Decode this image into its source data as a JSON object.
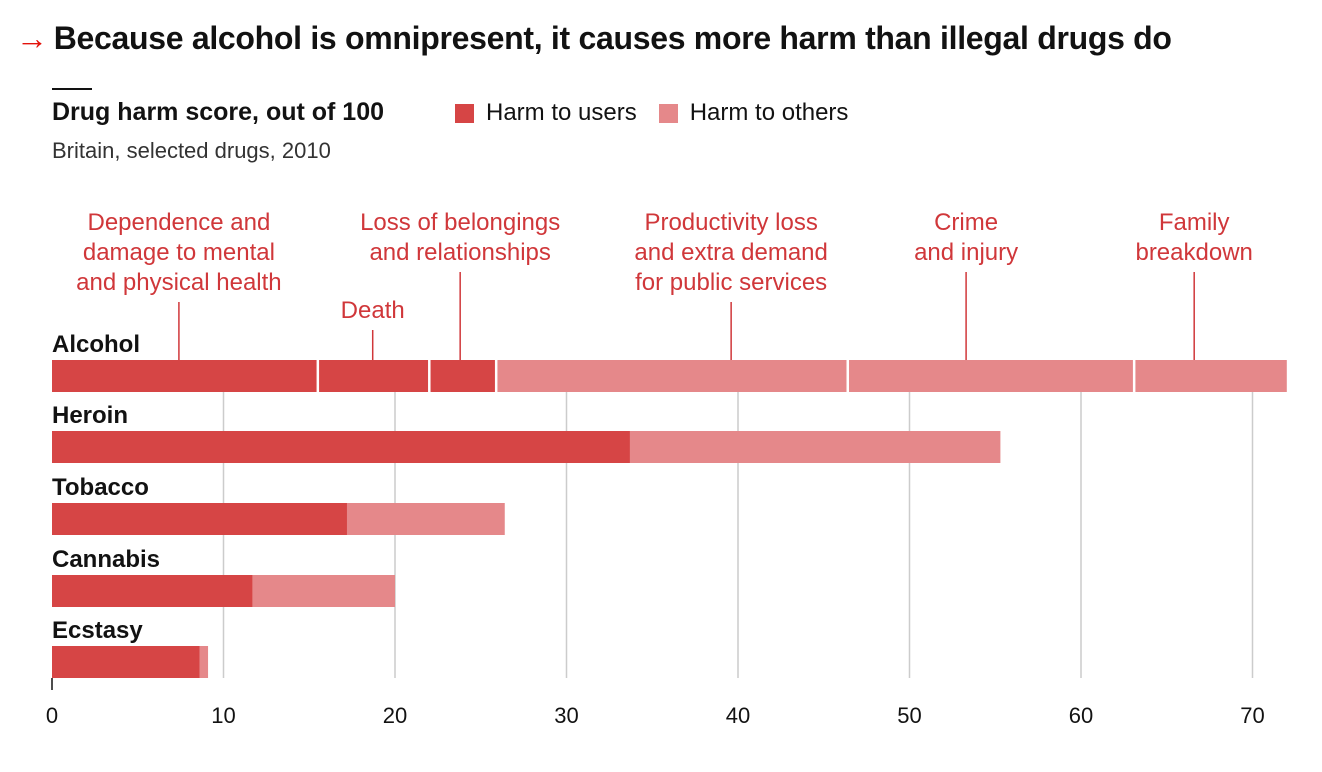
{
  "headline": {
    "arrow": "→",
    "title": "Because alcohol is omnipresent, it causes more harm than illegal drugs do"
  },
  "colors": {
    "users": "#d64545",
    "others": "#e5888a",
    "annotation": "#d0373a",
    "grid": "#cccccc"
  },
  "chart_data": {
    "type": "bar",
    "orientation": "horizontal",
    "stacked": true,
    "title": "Drug harm score, out of 100",
    "subtitle": "Britain, selected drugs, 2010",
    "xlim": [
      0,
      72
    ],
    "xticks": [
      0,
      10,
      20,
      30,
      40,
      50,
      60,
      70
    ],
    "grid": "vertical",
    "legend_position": "top",
    "categories": [
      "Alcohol",
      "Heroin",
      "Tobacco",
      "Cannabis",
      "Ecstasy"
    ],
    "series": [
      {
        "name": "Harm to users",
        "values": [
          25.9,
          33.7,
          17.2,
          11.7,
          8.6
        ]
      },
      {
        "name": "Harm to others",
        "values": [
          46.1,
          21.6,
          9.2,
          8.3,
          0.5
        ]
      }
    ],
    "alcohol_breakdown": [
      {
        "series": "Harm to users",
        "value": 15.5
      },
      {
        "series": "Harm to users",
        "value": 6.5
      },
      {
        "series": "Harm to users",
        "value": 3.9
      },
      {
        "series": "Harm to others",
        "value": 20.5
      },
      {
        "series": "Harm to others",
        "value": 16.7
      },
      {
        "series": "Harm to others",
        "value": 8.9
      }
    ],
    "annotations": [
      {
        "lines": [
          "Dependence and",
          "damage to mental",
          "and physical health"
        ],
        "x": 7.4
      },
      {
        "lines": [
          "Death"
        ],
        "x": 18.7
      },
      {
        "lines": [
          "Loss of belongings",
          "and relationships"
        ],
        "x": 23.8
      },
      {
        "lines": [
          "Productivity loss",
          "and extra demand",
          "for public services"
        ],
        "x": 39.6
      },
      {
        "lines": [
          "Crime",
          "and injury"
        ],
        "x": 53.3
      },
      {
        "lines": [
          "Family",
          "breakdown"
        ],
        "x": 66.6
      }
    ]
  }
}
